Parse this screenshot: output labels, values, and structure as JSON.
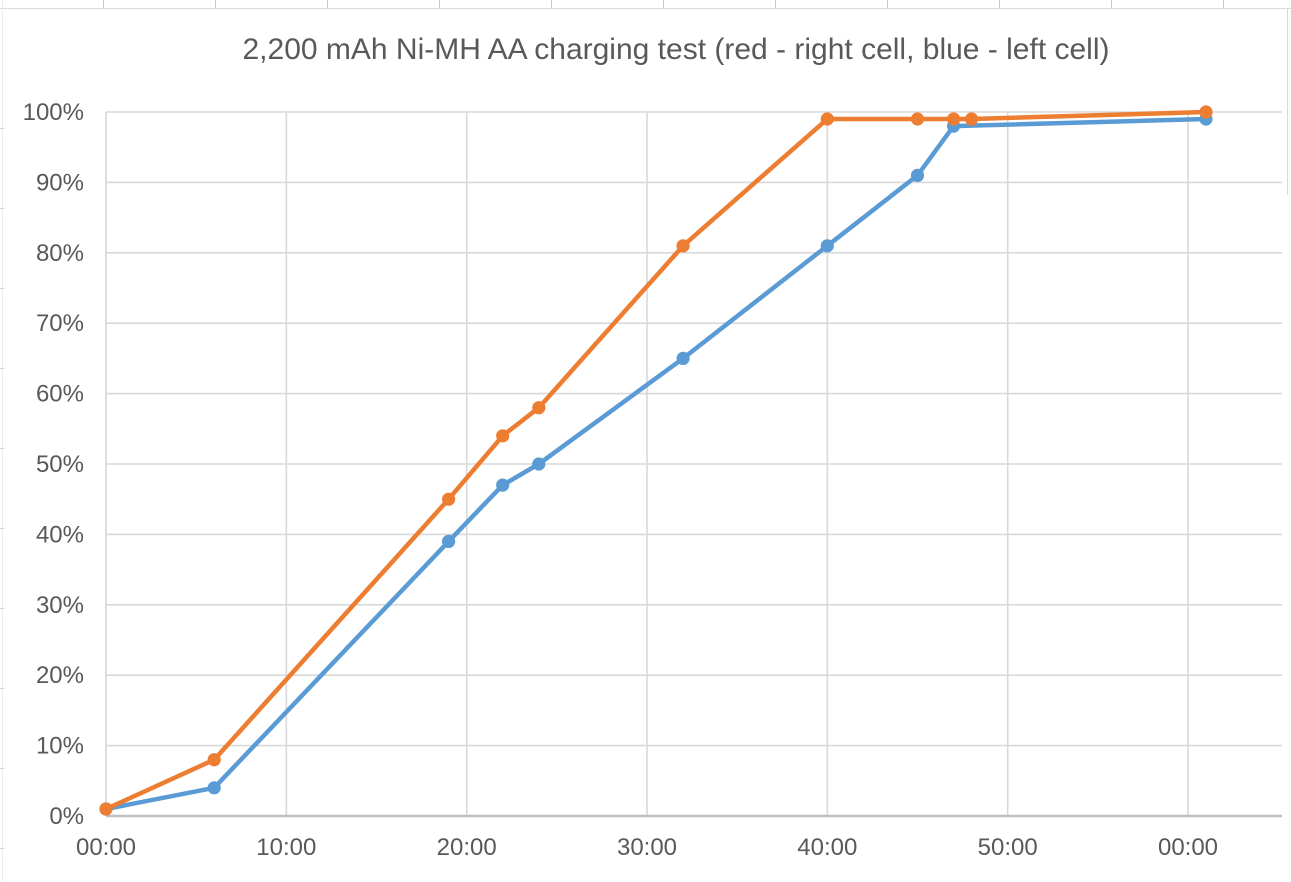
{
  "chart_data": {
    "type": "line",
    "title": "2,200 mAh Ni-MH AA charging test (red - right cell, blue - left cell)",
    "xlabel": "",
    "ylabel": "",
    "grid": true,
    "legend_position": "none",
    "xlim": [
      0,
      65.2
    ],
    "ylim": [
      0,
      100
    ],
    "x_ticks": [
      {
        "value": 0,
        "label": "00:00"
      },
      {
        "value": 10,
        "label": "10:00"
      },
      {
        "value": 20,
        "label": "20:00"
      },
      {
        "value": 30,
        "label": "30:00"
      },
      {
        "value": 40,
        "label": "40:00"
      },
      {
        "value": 50,
        "label": "50:00"
      },
      {
        "value": 60,
        "label": "00:00"
      }
    ],
    "y_ticks": [
      {
        "value": 0,
        "label": "0%"
      },
      {
        "value": 10,
        "label": "10%"
      },
      {
        "value": 20,
        "label": "20%"
      },
      {
        "value": 30,
        "label": "30%"
      },
      {
        "value": 40,
        "label": "40%"
      },
      {
        "value": 50,
        "label": "50%"
      },
      {
        "value": 60,
        "label": "60%"
      },
      {
        "value": 70,
        "label": "70%"
      },
      {
        "value": 80,
        "label": "80%"
      },
      {
        "value": 90,
        "label": "90%"
      },
      {
        "value": 100,
        "label": "100%"
      }
    ],
    "series": [
      {
        "name": "left cell (blue)",
        "color": "#5B9BD5",
        "points": [
          [
            0,
            1
          ],
          [
            6,
            4
          ],
          [
            19,
            39
          ],
          [
            22,
            47
          ],
          [
            24,
            50
          ],
          [
            32,
            65
          ],
          [
            40,
            81
          ],
          [
            45,
            91
          ],
          [
            47,
            98
          ],
          [
            61,
            99
          ]
        ]
      },
      {
        "name": "right cell (red)",
        "color": "#ED7D31",
        "points": [
          [
            0,
            1
          ],
          [
            6,
            8
          ],
          [
            19,
            45
          ],
          [
            22,
            54
          ],
          [
            24,
            58
          ],
          [
            32,
            81
          ],
          [
            40,
            99
          ],
          [
            45,
            99
          ],
          [
            47,
            99
          ],
          [
            48,
            99
          ],
          [
            61,
            100
          ]
        ]
      }
    ],
    "colors": {
      "gridline": "#D9D9D9",
      "axis_line": "#BFBFBF",
      "label_text": "#595959",
      "background": "#FFFFFF"
    }
  }
}
